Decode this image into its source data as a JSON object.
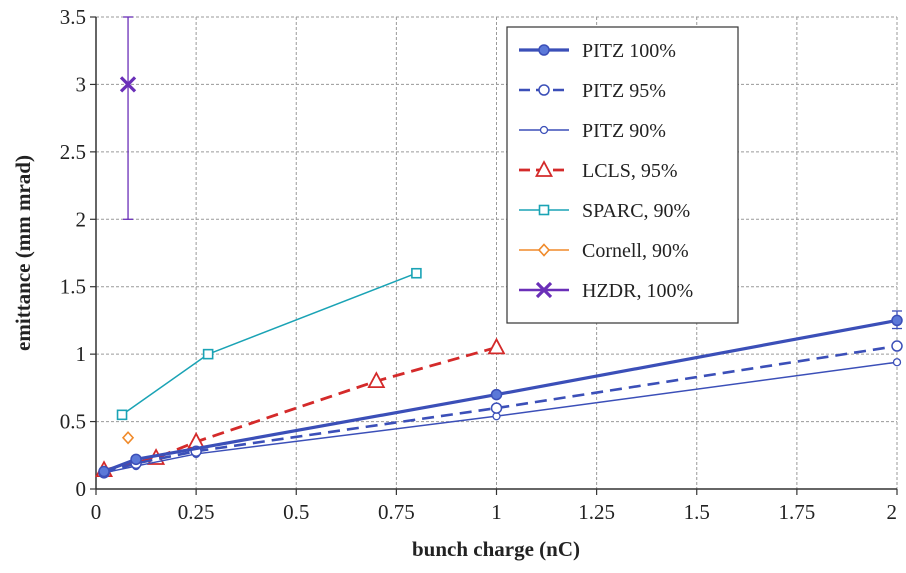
{
  "chart_data": {
    "type": "line",
    "title": "",
    "xlabel": "bunch charge (nC)",
    "ylabel": "emittance (mm mrad)",
    "xlim": [
      0,
      2
    ],
    "ylim": [
      0,
      3.5
    ],
    "xticks": [
      0,
      0.25,
      0.5,
      0.75,
      1,
      1.25,
      1.5,
      1.75,
      2
    ],
    "xtick_labels": [
      "0",
      "0.25",
      "0.5",
      "0.75",
      "1",
      "1.25",
      "1.5",
      "1.75",
      "2"
    ],
    "yticks": [
      0,
      0.5,
      1,
      1.5,
      2,
      2.5,
      3,
      3.5
    ],
    "ytick_labels": [
      "0",
      "0.5",
      "1",
      "1.5",
      "2",
      "2.5",
      "3",
      "3.5"
    ],
    "grid": true,
    "legend_position": "top-right",
    "series": [
      {
        "name": "PITZ 100%",
        "color": "#3b4fb8",
        "line": "solid",
        "width": 3.2,
        "marker": "filled-circle",
        "x": [
          0.02,
          0.1,
          1,
          2
        ],
        "y": [
          0.13,
          0.22,
          0.7,
          1.25
        ],
        "error_bar_x": 2,
        "error_range": [
          1.19,
          1.32
        ]
      },
      {
        "name": "PITZ 95%",
        "color": "#3b4fb8",
        "line": "dashed",
        "width": 2.6,
        "marker": "open-circle",
        "x": [
          0.02,
          0.1,
          0.25,
          1,
          2
        ],
        "y": [
          0.12,
          0.19,
          0.28,
          0.6,
          1.06
        ]
      },
      {
        "name": "PITZ 90%",
        "color": "#3b4fb8",
        "line": "solid",
        "width": 1.5,
        "marker": "small-open-circle",
        "x": [
          0.02,
          0.1,
          0.25,
          1,
          2
        ],
        "y": [
          0.12,
          0.17,
          0.26,
          0.54,
          0.94
        ]
      },
      {
        "name": "LCLS, 95%",
        "color": "#d42a2a",
        "line": "dashed",
        "width": 2.8,
        "marker": "open-triangle",
        "x": [
          0.02,
          0.15,
          0.25,
          0.7,
          1
        ],
        "y": [
          0.14,
          0.23,
          0.35,
          0.8,
          1.05
        ]
      },
      {
        "name": "SPARC, 90%",
        "color": "#1aa3b5",
        "line": "solid",
        "width": 1.5,
        "marker": "open-square",
        "x": [
          0.065,
          0.28,
          0.8
        ],
        "y": [
          0.55,
          1.0,
          1.6
        ]
      },
      {
        "name": "Cornell, 90%",
        "color": "#f08a2a",
        "line": "none",
        "width": 1.5,
        "marker": "open-diamond",
        "x": [
          0.08
        ],
        "y": [
          0.38
        ]
      },
      {
        "name": "HZDR, 100%",
        "color": "#6a2fb8",
        "line": "none",
        "width": 2.5,
        "marker": "x",
        "x": [
          0.08
        ],
        "y": [
          3.0
        ],
        "error_bar_x": 0.08,
        "error_range": [
          2.0,
          3.5
        ]
      }
    ]
  }
}
